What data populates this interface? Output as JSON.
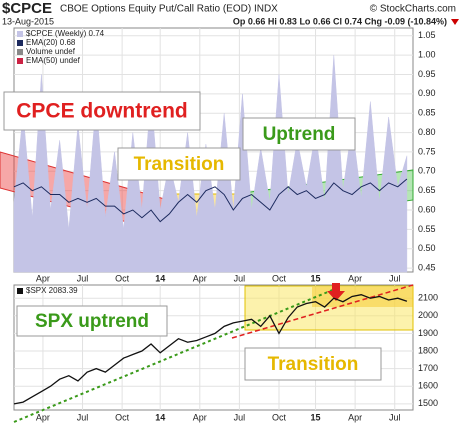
{
  "chart_data": [
    {
      "type": "area",
      "title": "$CPCE",
      "subtitle": "CBOE Options Equity Put/Call Ratio (EOD)  INDX",
      "source": "© StockCharts.com",
      "date": "13-Aug-2015",
      "ohlc": "Op 0.66  Hi 0.83  Lo 0.66  Cl 0.74  Chg -0.09 (-10.84%)",
      "x": [
        0,
        3,
        6,
        9,
        12,
        15,
        18,
        21,
        24,
        27,
        30,
        33,
        36,
        39,
        42,
        45,
        48,
        51,
        54,
        57,
        60,
        63,
        66,
        69,
        72,
        75,
        78,
        81,
        84,
        87,
        90,
        93,
        96,
        99,
        102,
        105,
        108,
        111,
        114,
        117,
        120,
        123,
        126,
        129
      ],
      "series": [
        {
          "name": "$CPCE (Weekly) 0.74",
          "color": "#c4c4e6",
          "style": "area",
          "values": [
            0.62,
            0.85,
            0.58,
            0.95,
            0.6,
            0.78,
            0.55,
            0.82,
            0.6,
            0.88,
            0.58,
            0.75,
            0.55,
            0.8,
            0.6,
            0.9,
            0.6,
            0.72,
            0.62,
            0.8,
            0.58,
            0.77,
            0.6,
            0.85,
            0.6,
            0.9,
            0.6,
            0.76,
            0.62,
            0.95,
            0.64,
            0.78,
            0.66,
            0.8,
            0.62,
            1.0,
            0.65,
            0.82,
            0.63,
            0.88,
            0.62,
            0.84,
            0.66,
            0.74
          ]
        },
        {
          "name": "EMA(20) 0.68",
          "color": "#1c2a5e",
          "style": "line",
          "values": [
            0.66,
            0.67,
            0.65,
            0.66,
            0.64,
            0.64,
            0.62,
            0.63,
            0.62,
            0.63,
            0.61,
            0.61,
            0.59,
            0.6,
            0.58,
            0.6,
            0.57,
            0.59,
            0.62,
            0.64,
            0.62,
            0.65,
            0.66,
            0.64,
            0.6,
            0.63,
            0.64,
            0.62,
            0.6,
            0.64,
            0.66,
            0.64,
            0.65,
            0.63,
            0.64,
            0.67,
            0.65,
            0.64,
            0.66,
            0.67,
            0.65,
            0.67,
            0.66,
            0.68
          ]
        }
      ],
      "legend_only": [
        {
          "name": "Volume undef",
          "color": "#888888"
        },
        {
          "name": "EMA(50) undef",
          "color": "#cc2244"
        }
      ],
      "annotations": [
        "CPCE downtrend",
        "Transition",
        "Uptrend"
      ],
      "xlim": [
        0,
        131
      ],
      "xticks": [
        {
          "value": 9.5,
          "label": "Apr"
        },
        {
          "value": 22.5,
          "label": "Jul"
        },
        {
          "value": 35.5,
          "label": "Oct"
        },
        {
          "value": 48,
          "label": "14"
        },
        {
          "value": 61,
          "label": "Apr"
        },
        {
          "value": 74,
          "label": "Jul"
        },
        {
          "value": 87,
          "label": "Oct"
        },
        {
          "value": 99,
          "label": "15"
        },
        {
          "value": 112,
          "label": "Apr"
        },
        {
          "value": 125,
          "label": "Jul"
        }
      ],
      "ylim": [
        0.44,
        1.07
      ],
      "yticks": [
        0.45,
        {
          "value": 0.5,
          "label": "0.50"
        },
        0.55,
        {
          "value": 0.6,
          "label": "0.60"
        },
        0.65,
        {
          "value": 0.7,
          "label": "0.70"
        },
        0.75,
        {
          "value": 0.8,
          "label": "0.80"
        },
        0.85,
        {
          "value": 0.9,
          "label": "0.90"
        },
        0.95,
        {
          "value": 1.0,
          "label": "1.00"
        },
        1.05
      ],
      "grid": true
    },
    {
      "type": "line",
      "x": [
        0,
        3,
        6,
        9,
        12,
        15,
        18,
        21,
        24,
        27,
        30,
        33,
        36,
        39,
        42,
        45,
        48,
        51,
        54,
        57,
        60,
        63,
        66,
        69,
        72,
        75,
        78,
        81,
        84,
        87,
        90,
        93,
        96,
        99,
        102,
        105,
        108,
        111,
        114,
        117,
        120,
        123,
        126,
        129
      ],
      "series": [
        {
          "name": "$SPX 2083.39",
          "color": "#111111",
          "style": "line",
          "values": [
            1500,
            1510,
            1540,
            1570,
            1600,
            1640,
            1660,
            1630,
            1680,
            1700,
            1680,
            1720,
            1760,
            1780,
            1800,
            1840,
            1790,
            1830,
            1870,
            1850,
            1860,
            1880,
            1900,
            1940,
            1960,
            1970,
            1980,
            1940,
            2000,
            1900,
            1990,
            2050,
            2070,
            2080,
            2050,
            2100,
            2080,
            2110,
            2120,
            2100,
            2110,
            2090,
            2100,
            2083
          ]
        }
      ],
      "annotations": [
        "SPX uptrend",
        "Transition"
      ],
      "xlim": [
        0,
        131
      ],
      "xticks": [
        {
          "value": 9.5,
          "label": "Apr"
        },
        {
          "value": 22.5,
          "label": "Jul"
        },
        {
          "value": 35.5,
          "label": "Oct"
        },
        {
          "value": 48,
          "label": "14"
        },
        {
          "value": 61,
          "label": "Apr"
        },
        {
          "value": 74,
          "label": "Jul"
        },
        {
          "value": 87,
          "label": "Oct"
        },
        {
          "value": 99,
          "label": "15"
        },
        {
          "value": 112,
          "label": "Apr"
        },
        {
          "value": 125,
          "label": "Jul"
        }
      ],
      "ylim": [
        1465,
        2175
      ],
      "yticks": [
        1500,
        1600,
        1700,
        1800,
        1900,
        2000,
        2100
      ],
      "grid": true
    }
  ]
}
